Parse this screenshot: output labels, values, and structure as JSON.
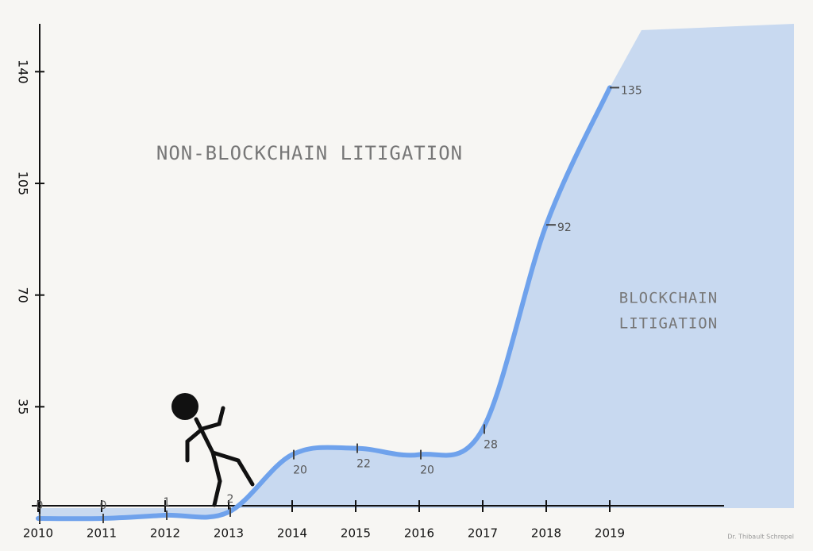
{
  "chart_data": {
    "type": "line",
    "x": [
      2010,
      2011,
      2012,
      2013,
      2014,
      2015,
      2016,
      2017,
      2018,
      2019
    ],
    "series": [
      {
        "name": "Blockchain litigation",
        "color": "#6fa2ec",
        "values": [
          0,
          0,
          1,
          2,
          20,
          22,
          20,
          28,
          92,
          135
        ]
      }
    ],
    "xlim": [
      2010,
      2020.8
    ],
    "xticks": [
      2010,
      2011,
      2012,
      2013,
      2014,
      2015,
      2016,
      2017,
      2018,
      2019
    ],
    "ylim": [
      0,
      155
    ],
    "yticks": [
      35,
      70,
      105,
      140
    ],
    "annotations": {
      "upper": "NON-BLOCKCHAIN LITIGATION",
      "lower": [
        "BLOCKCHAIN",
        "LITIGATION"
      ]
    },
    "credit": "Dr. Thibault Schrepel"
  }
}
